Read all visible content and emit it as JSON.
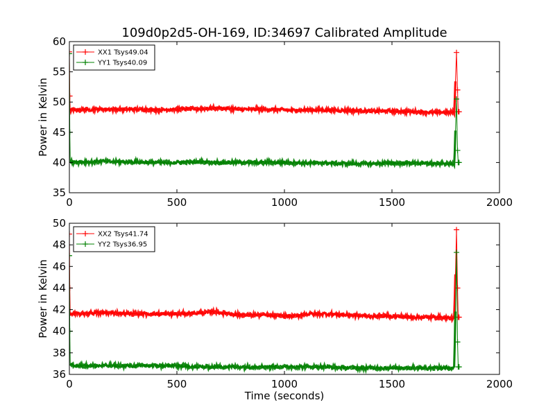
{
  "title": "109d0p2d5-OH-169, ID:34697 Calibrated Amplitude",
  "chart_data": [
    {
      "type": "line",
      "ylabel": "Power in Kelvin",
      "xlabel": "",
      "xlim": [
        0,
        2000
      ],
      "ylim": [
        35,
        60
      ],
      "xticks": [
        0,
        500,
        1000,
        1500,
        2000
      ],
      "yticks": [
        35,
        40,
        45,
        50,
        55,
        60
      ],
      "legend_position": "top-left",
      "series": [
        {
          "name": "XX1 Tsys49.04",
          "color": "#ff0000",
          "marker": "+",
          "x": [
            0,
            2,
            4,
            8,
            50,
            100,
            200,
            300,
            400,
            500,
            600,
            680,
            750,
            800,
            900,
            1000,
            1050,
            1100,
            1200,
            1300,
            1400,
            1500,
            1600,
            1700,
            1790,
            1800,
            1805,
            1808,
            1812
          ],
          "y": [
            58.3,
            51.0,
            48.7,
            48.7,
            48.7,
            48.8,
            48.8,
            48.8,
            48.7,
            48.8,
            48.9,
            49.0,
            48.9,
            48.8,
            48.8,
            48.7,
            48.6,
            48.7,
            48.7,
            48.6,
            48.5,
            48.5,
            48.4,
            48.3,
            48.3,
            58.2,
            52.0,
            48.4,
            48.4
          ]
        },
        {
          "name": "YY1 Tsys40.09",
          "color": "#008000",
          "marker": "+",
          "x": [
            0,
            2,
            4,
            8,
            50,
            100,
            150,
            200,
            300,
            400,
            500,
            600,
            700,
            800,
            900,
            1000,
            1100,
            1200,
            1300,
            1400,
            1500,
            1600,
            1700,
            1790,
            1800,
            1805,
            1808,
            1812
          ],
          "y": [
            58.0,
            45.0,
            40.1,
            40.1,
            40.1,
            40.1,
            40.2,
            40.1,
            40.1,
            40.0,
            40.0,
            40.1,
            40.0,
            40.0,
            40.0,
            40.0,
            39.9,
            39.9,
            39.8,
            39.8,
            39.9,
            39.9,
            39.8,
            39.8,
            50.5,
            42.0,
            40.0,
            40.0
          ]
        }
      ]
    },
    {
      "type": "line",
      "ylabel": "Power in Kelvin",
      "xlabel": "Time (seconds)",
      "xlim": [
        0,
        2000
      ],
      "ylim": [
        36,
        50
      ],
      "xticks": [
        0,
        500,
        1000,
        1500,
        2000
      ],
      "yticks": [
        36,
        38,
        40,
        42,
        44,
        46,
        48,
        50
      ],
      "legend_position": "top-left",
      "series": [
        {
          "name": "XX2 Tsys41.74",
          "color": "#ff0000",
          "marker": "+",
          "x": [
            0,
            2,
            4,
            8,
            50,
            100,
            200,
            300,
            400,
            500,
            600,
            680,
            750,
            800,
            900,
            1000,
            1050,
            1100,
            1200,
            1300,
            1400,
            1500,
            1600,
            1700,
            1790,
            1800,
            1805,
            1808,
            1812
          ],
          "y": [
            49.0,
            44.0,
            41.6,
            41.6,
            41.6,
            41.7,
            41.7,
            41.6,
            41.6,
            41.6,
            41.7,
            41.8,
            41.6,
            41.5,
            41.5,
            41.4,
            41.4,
            41.6,
            41.6,
            41.5,
            41.4,
            41.4,
            41.3,
            41.3,
            41.2,
            49.4,
            44.0,
            41.3,
            41.3
          ]
        },
        {
          "name": "YY2 Tsys36.95",
          "color": "#008000",
          "marker": "+",
          "x": [
            0,
            2,
            4,
            8,
            50,
            100,
            200,
            300,
            400,
            500,
            600,
            700,
            800,
            900,
            1000,
            1100,
            1200,
            1300,
            1400,
            1500,
            1600,
            1700,
            1790,
            1800,
            1805,
            1808,
            1812
          ],
          "y": [
            47.0,
            40.0,
            36.9,
            36.9,
            36.8,
            36.8,
            36.8,
            36.8,
            36.8,
            36.8,
            36.7,
            36.7,
            36.7,
            36.7,
            36.7,
            36.7,
            36.7,
            36.6,
            36.6,
            36.6,
            36.6,
            36.6,
            36.6,
            47.3,
            39.0,
            36.7,
            36.7
          ]
        }
      ]
    }
  ]
}
